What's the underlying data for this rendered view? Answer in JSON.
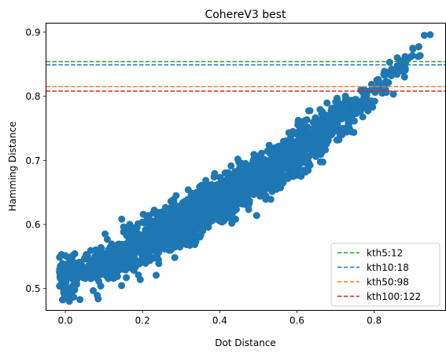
{
  "chart_data": {
    "type": "scatter",
    "title": "CohereV3 best",
    "xlabel": "Dot Distance",
    "ylabel": "Hamming Distance",
    "xlim": [
      -0.05,
      0.985
    ],
    "ylim": [
      0.466,
      0.914
    ],
    "x_ticks": [
      0.0,
      0.2,
      0.4,
      0.6,
      0.8
    ],
    "x_tick_labels": [
      "0.0",
      "0.2",
      "0.4",
      "0.6",
      "0.8"
    ],
    "y_ticks": [
      0.5,
      0.6,
      0.7,
      0.8,
      0.9
    ],
    "y_tick_labels": [
      "0.5",
      "0.6",
      "0.7",
      "0.8",
      "0.9"
    ],
    "grid": false,
    "legend_position": "lower-right",
    "scatter_series": {
      "color": "#1f77b4",
      "trend": [
        [
          -0.02,
          0.513
        ],
        [
          0.1,
          0.537
        ],
        [
          0.2,
          0.572
        ],
        [
          0.3,
          0.603
        ],
        [
          0.4,
          0.638
        ],
        [
          0.5,
          0.673
        ],
        [
          0.6,
          0.713
        ],
        [
          0.7,
          0.758
        ],
        [
          0.75,
          0.783
        ],
        [
          0.8,
          0.808
        ],
        [
          0.85,
          0.833
        ],
        [
          0.9,
          0.862
        ],
        [
          0.94,
          0.892
        ]
      ],
      "spread": 0.03,
      "outliers": [
        [
          0.085,
          0.484
        ],
        [
          0.93,
          0.895
        ],
        [
          0.945,
          0.896
        ],
        [
          0.915,
          0.877
        ],
        [
          0.9,
          0.875
        ],
        [
          0.88,
          0.862
        ],
        [
          0.86,
          0.86
        ]
      ]
    },
    "hlines": [
      {
        "label": "kth5:12",
        "y": 0.854,
        "color": "#2ca02c"
      },
      {
        "label": "kth10:18",
        "y": 0.849,
        "color": "#1f77b4"
      },
      {
        "label": "kth50:98",
        "y": 0.815,
        "color": "#ff7f0e"
      },
      {
        "label": "kth100:122",
        "y": 0.808,
        "color": "#d62728"
      }
    ]
  }
}
